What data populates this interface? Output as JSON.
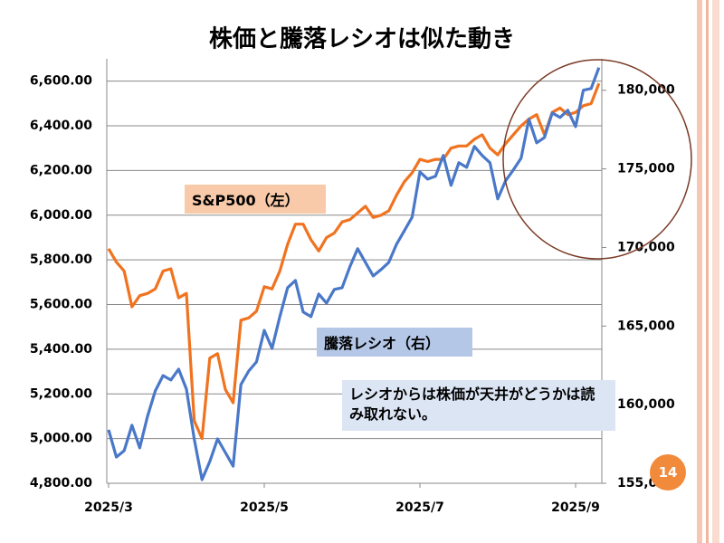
{
  "chart_data": {
    "type": "line",
    "title": "株価と騰落レシオは似た動き",
    "annotation": "レシオからは株価が天井がどうかは読み取れない。",
    "categories": [
      "2025/3",
      null,
      null,
      null,
      null,
      null,
      null,
      null,
      null,
      null,
      null,
      null,
      null,
      null,
      null,
      null,
      null,
      null,
      null,
      null,
      "2025/5",
      null,
      null,
      null,
      null,
      null,
      null,
      null,
      null,
      null,
      null,
      null,
      null,
      null,
      null,
      null,
      null,
      null,
      null,
      null,
      "2025/7",
      null,
      null,
      null,
      null,
      null,
      null,
      null,
      null,
      null,
      null,
      null,
      null,
      null,
      null,
      null,
      null,
      null,
      null,
      null,
      "2025/9",
      null,
      null,
      null
    ],
    "series": [
      {
        "name": "S&P500（左）",
        "color": "#f07320",
        "values": [
          5850,
          5790,
          5750,
          5590,
          5640,
          5650,
          5670,
          5750,
          5760,
          5630,
          5650,
          5080,
          5000,
          5360,
          5380,
          5220,
          5160,
          5530,
          5540,
          5570,
          5680,
          5670,
          5750,
          5870,
          5960,
          5960,
          5890,
          5840,
          5900,
          5920,
          5970,
          5980,
          6010,
          6040,
          5990,
          6000,
          6020,
          6090,
          6150,
          6190,
          6250,
          6240,
          6250,
          6250,
          6300,
          6310,
          6310,
          6340,
          6360,
          6300,
          6270,
          6320,
          6360,
          6400,
          6430,
          6450,
          6360,
          6460,
          6480,
          6450,
          6460,
          6490,
          6500,
          6590
        ]
      },
      {
        "name": "騰落レシオ（右）",
        "color": "#4a78c8",
        "axis": "y2",
        "values": [
          158400,
          156670,
          157070,
          158690,
          157250,
          159260,
          160880,
          161850,
          161570,
          162260,
          160990,
          157820,
          155230,
          156380,
          157820,
          156960,
          156090,
          161280,
          162140,
          162720,
          164730,
          163580,
          165600,
          167440,
          167900,
          165890,
          165600,
          167040,
          166460,
          167330,
          167440,
          168770,
          169920,
          169050,
          168190,
          168590,
          169050,
          170210,
          171070,
          171930,
          174810,
          174350,
          174530,
          175850,
          173950,
          175390,
          175100,
          176430,
          175850,
          175390,
          173090,
          174240,
          174930,
          175680,
          178160,
          176660,
          177000,
          178560,
          178270,
          178730,
          177690,
          180000,
          180110,
          181440
        ]
      }
    ],
    "ylim": [
      4800,
      6700
    ],
    "yticks": [
      {
        "value": 4800,
        "label": "4,800.00"
      },
      {
        "value": 5000,
        "label": "5,000.00"
      },
      {
        "value": 5200,
        "label": "5,200.00"
      },
      {
        "value": 5400,
        "label": "5,400.00"
      },
      {
        "value": 5600,
        "label": "5,600.00"
      },
      {
        "value": 5800,
        "label": "5,800.00"
      },
      {
        "value": 6000,
        "label": "6,000.00"
      },
      {
        "value": 6200,
        "label": "6,200.00"
      },
      {
        "value": 6400,
        "label": "6,400.00"
      },
      {
        "value": 6600,
        "label": "6,600.00"
      }
    ],
    "y2lim": [
      155000,
      182000
    ],
    "y2ticks": [
      {
        "value": 155000,
        "label": "155,000"
      },
      {
        "value": 160000,
        "label": "160,000"
      },
      {
        "value": 165000,
        "label": "165,000"
      },
      {
        "value": 170000,
        "label": "170,000"
      },
      {
        "value": 175000,
        "label": "175,000"
      },
      {
        "value": 180000,
        "label": "180,000"
      }
    ],
    "grid": true
  },
  "slide": {
    "page_number": "14"
  }
}
